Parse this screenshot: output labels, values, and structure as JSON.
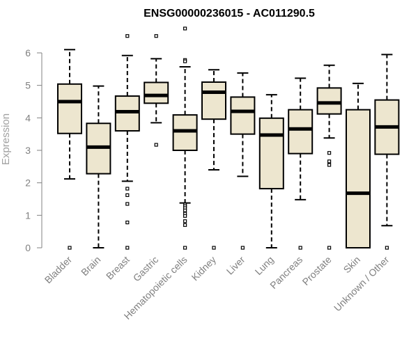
{
  "chart_data": {
    "type": "box",
    "title": "ENSG00000236015 - AC011290.5",
    "ylabel": "Expression",
    "xlabel": "",
    "ylim": [
      0,
      6.7
    ],
    "yticks": [
      0,
      1,
      2,
      3,
      4,
      5,
      6
    ],
    "grid": false,
    "box_color": "#ede6cf",
    "categories": [
      "Bladder",
      "Brain",
      "Breast",
      "Gastric",
      "Hematopoietic cells",
      "Kidney",
      "Liver",
      "Lung",
      "Pancreas",
      "Prostate",
      "Skin",
      "Unknown / Other"
    ],
    "boxes": [
      {
        "whisker_low": 2.12,
        "q1": 3.52,
        "median": 4.5,
        "q3": 5.04,
        "whisker_high": 6.1,
        "outliers": [
          0
        ]
      },
      {
        "whisker_low": 0.0,
        "q1": 2.28,
        "median": 3.1,
        "q3": 3.83,
        "whisker_high": 4.98,
        "outliers": []
      },
      {
        "whisker_low": 2.05,
        "q1": 3.6,
        "median": 4.19,
        "q3": 4.67,
        "whisker_high": 5.92,
        "outliers": [
          6.52,
          1.82,
          1.62,
          1.35,
          0.78,
          0
        ]
      },
      {
        "whisker_low": 3.85,
        "q1": 4.45,
        "median": 4.69,
        "q3": 5.09,
        "whisker_high": 5.82,
        "outliers": [
          6.52,
          3.17
        ]
      },
      {
        "whisker_low": 1.38,
        "q1": 3.0,
        "median": 3.6,
        "q3": 4.09,
        "whisker_high": 5.57,
        "outliers": [
          6.75,
          5.78,
          5.74,
          1.33,
          1.28,
          1.22,
          1.15,
          1.05,
          0.98,
          0.82,
          0.7,
          0
        ]
      },
      {
        "whisker_low": 2.4,
        "q1": 3.96,
        "median": 4.79,
        "q3": 5.1,
        "whisker_high": 5.48,
        "outliers": [
          0
        ]
      },
      {
        "whisker_low": 2.2,
        "q1": 3.5,
        "median": 4.2,
        "q3": 4.64,
        "whisker_high": 5.38,
        "outliers": [
          0
        ]
      },
      {
        "whisker_low": 0.0,
        "q1": 1.82,
        "median": 3.47,
        "q3": 3.99,
        "whisker_high": 4.71,
        "outliers": []
      },
      {
        "whisker_low": 1.48,
        "q1": 2.9,
        "median": 3.66,
        "q3": 4.25,
        "whisker_high": 5.22,
        "outliers": [
          0
        ]
      },
      {
        "whisker_low": 3.38,
        "q1": 4.12,
        "median": 4.46,
        "q3": 4.92,
        "whisker_high": 5.62,
        "outliers": [
          2.92,
          2.66,
          2.55,
          0
        ]
      },
      {
        "whisker_low": 0.0,
        "q1": 0.0,
        "median": 1.68,
        "q3": 4.25,
        "whisker_high": 5.06,
        "outliers": []
      },
      {
        "whisker_low": 0.68,
        "q1": 2.88,
        "median": 3.72,
        "q3": 4.55,
        "whisker_high": 5.95,
        "outliers": [
          0
        ]
      }
    ]
  }
}
